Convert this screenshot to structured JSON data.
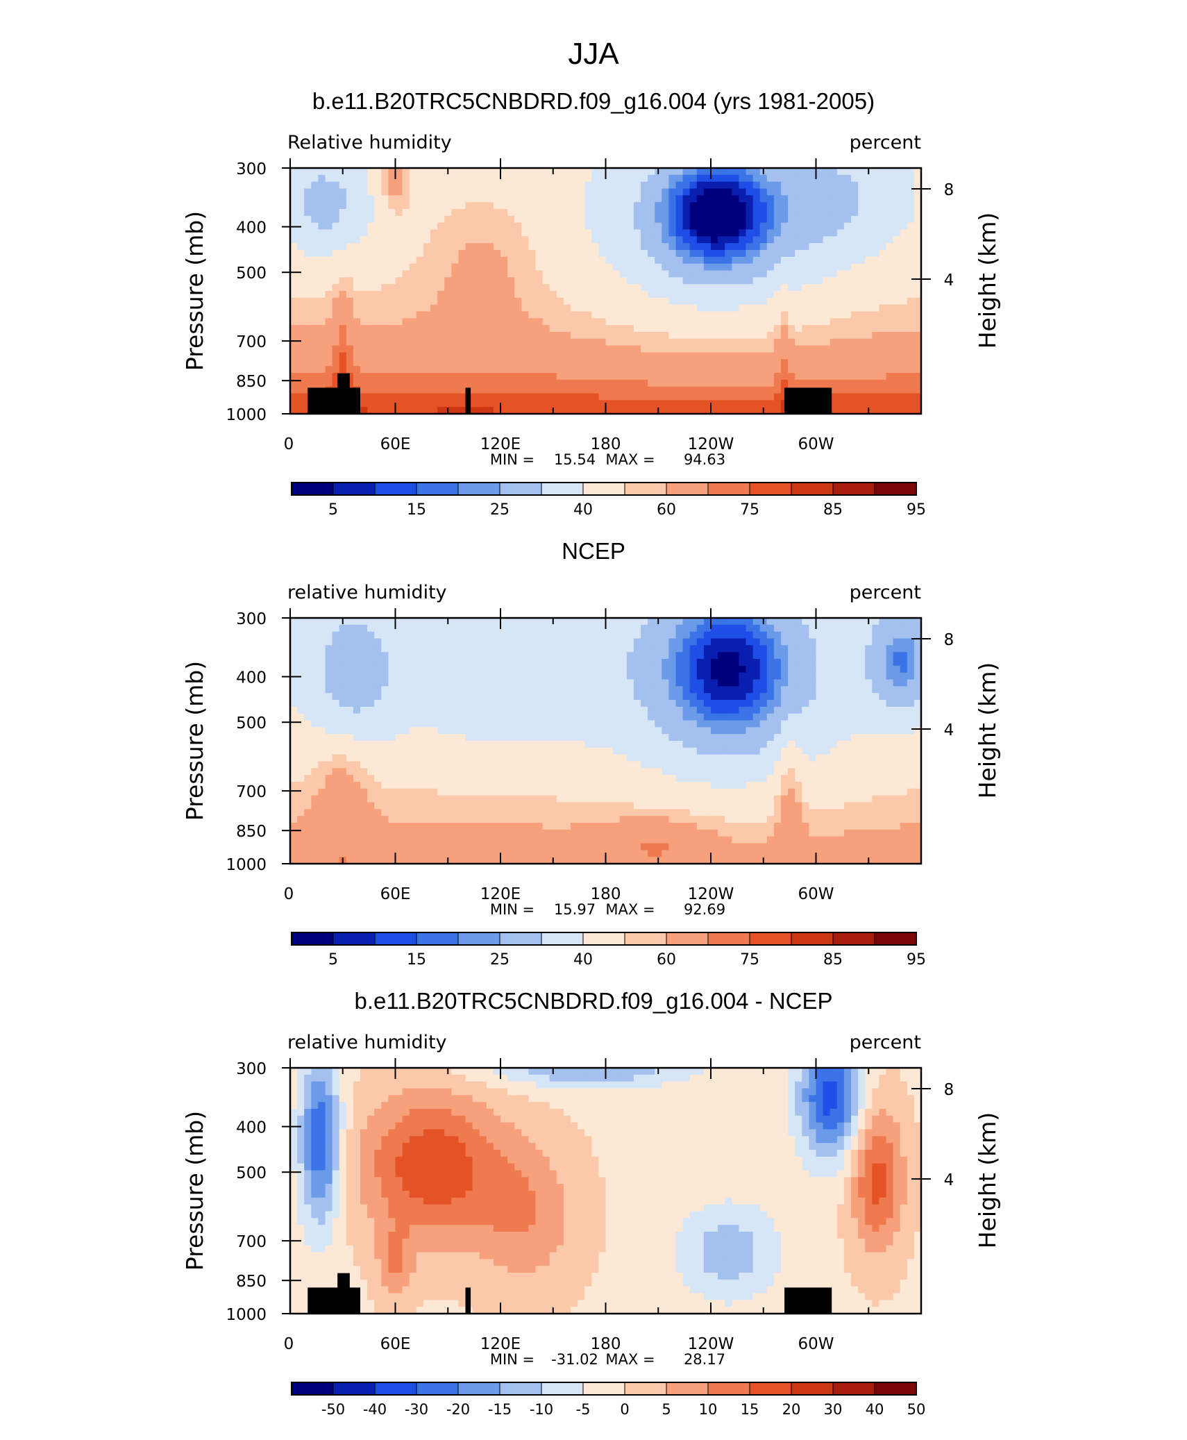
{
  "figure_title": "JJA",
  "colors": {
    "rh_levels": [
      "#00007f",
      "#0a1fb0",
      "#1f4ee6",
      "#3a73e6",
      "#6a9ae8",
      "#a3c0ee",
      "#d6e6f7",
      "#fde8d6",
      "#fbc8aa",
      "#f6a07c",
      "#f07a50",
      "#e55226",
      "#cd3713",
      "#a81c0c",
      "#7c0506"
    ],
    "land": "#000000"
  },
  "colorbar_rh": {
    "labels": [
      "5",
      "15",
      "25",
      "40",
      "60",
      "75",
      "85",
      "95"
    ]
  },
  "colorbar_diff": {
    "labels": [
      "-50",
      "-40",
      "-30",
      "-20",
      "-15",
      "-10",
      "-5",
      "0",
      "5",
      "10",
      "15",
      "20",
      "30",
      "40",
      "50"
    ]
  },
  "chart_data": [
    {
      "type": "heatmap",
      "title": "b.e11.B20TRC5CNBDRD.f09_g16.004 (yrs 1981-2005)",
      "left_label": "Relative  humidity",
      "right_label": "percent",
      "ylabel": "Pressure  (mb)",
      "y2label": "Height  (km)",
      "x_ticks": [
        "0",
        "60E",
        "120E",
        "180",
        "120W",
        "60W"
      ],
      "y_ticks": [
        "300",
        "400",
        "500",
        "700",
        "850",
        "1000"
      ],
      "y2_ticks": [
        "8",
        "4"
      ],
      "x_range": [
        0,
        360
      ],
      "y_range": [
        1000,
        300
      ],
      "min_label": "MIN =",
      "min_value": "15.54",
      "max_label": "MAX =",
      "max_value": "94.63",
      "colorbar": "rh",
      "show_land": true,
      "field": "model"
    },
    {
      "type": "heatmap",
      "title": "NCEP",
      "left_label": "relative  humidity",
      "right_label": "percent",
      "ylabel": "Pressure  (mb)",
      "y2label": "Height  (km)",
      "x_ticks": [
        "0",
        "60E",
        "120E",
        "180",
        "120W",
        "60W"
      ],
      "y_ticks": [
        "300",
        "400",
        "500",
        "700",
        "850",
        "1000"
      ],
      "y2_ticks": [
        "8",
        "4"
      ],
      "x_range": [
        0,
        360
      ],
      "y_range": [
        1000,
        300
      ],
      "min_label": "MIN =",
      "min_value": "15.97",
      "max_label": "MAX =",
      "max_value": "92.69",
      "colorbar": "rh",
      "show_land": false,
      "field": "obs"
    },
    {
      "type": "heatmap",
      "title": "b.e11.B20TRC5CNBDRD.f09_g16.004 - NCEP",
      "left_label": "relative  humidity",
      "right_label": "percent",
      "ylabel": "Pressure  (mb)",
      "y2label": "Height  (km)",
      "x_ticks": [
        "0",
        "60E",
        "120E",
        "180",
        "120W",
        "60W"
      ],
      "y_ticks": [
        "300",
        "400",
        "500",
        "700",
        "850",
        "1000"
      ],
      "y2_ticks": [
        "8",
        "4"
      ],
      "x_range": [
        0,
        360
      ],
      "y_range": [
        1000,
        300
      ],
      "min_label": "MIN =",
      "min_value": "-31.02",
      "max_label": "MAX =",
      "max_value": "28.17",
      "colorbar": "diff",
      "show_land": true,
      "field": "diff"
    }
  ]
}
